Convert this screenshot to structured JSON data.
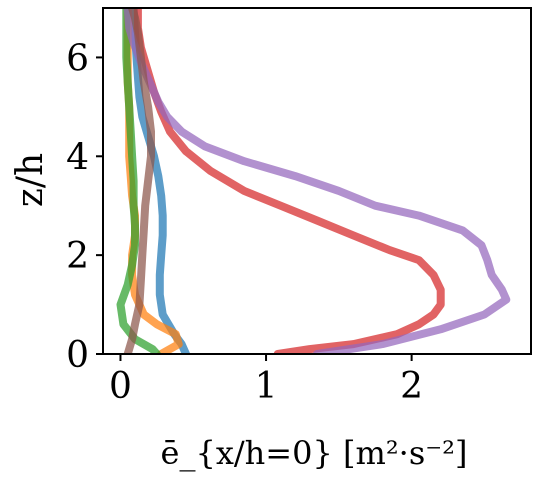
{
  "chart_data": {
    "type": "line",
    "xlabel": "ē_{x/h=0} [m²·s⁻²]",
    "ylabel": "z/h",
    "xlim": [
      -0.12,
      2.82
    ],
    "ylim": [
      0,
      7
    ],
    "xticks": [
      0,
      1,
      2
    ],
    "yticks": [
      0,
      2,
      4,
      6
    ],
    "grid": false,
    "legend": "none",
    "series": [
      {
        "color": "#1f77b4",
        "x": [
          0.45,
          0.42,
          0.37,
          0.29,
          0.27,
          0.27,
          0.28,
          0.29,
          0.29,
          0.28,
          0.26,
          0.23,
          0.19,
          0.15,
          0.13,
          0.12,
          0.11,
          0.1,
          0.09
        ],
        "y": [
          0.0,
          0.2,
          0.4,
          0.8,
          1.2,
          1.6,
          2.0,
          2.4,
          2.8,
          3.2,
          3.6,
          4.0,
          4.4,
          4.8,
          5.2,
          5.6,
          6.0,
          6.5,
          7.0
        ]
      },
      {
        "color": "#ff7f0e",
        "x": [
          0.28,
          0.4,
          0.38,
          0.25,
          0.16,
          0.1,
          0.08,
          0.08,
          0.1,
          0.1,
          0.08,
          0.07,
          0.06,
          0.06,
          0.06,
          0.05,
          0.05,
          0.05,
          0.05
        ],
        "y": [
          0.0,
          0.2,
          0.4,
          0.6,
          0.8,
          1.2,
          1.6,
          2.0,
          2.4,
          2.8,
          3.2,
          3.6,
          4.0,
          4.5,
          5.0,
          5.5,
          6.0,
          6.5,
          7.0
        ]
      },
      {
        "color": "#2ca02c",
        "x": [
          0.25,
          0.22,
          0.1,
          0.02,
          0.0,
          0.05,
          0.08,
          0.1,
          0.1,
          0.09,
          0.09,
          0.08,
          0.07,
          0.06,
          0.05,
          0.04,
          0.04
        ],
        "y": [
          0.0,
          0.1,
          0.3,
          0.6,
          1.0,
          1.4,
          1.8,
          2.2,
          2.6,
          3.0,
          3.5,
          4.0,
          4.5,
          5.0,
          5.5,
          6.0,
          7.0
        ]
      },
      {
        "color": "#d62728",
        "x": [
          1.08,
          1.3,
          1.6,
          1.9,
          2.05,
          2.15,
          2.2,
          2.2,
          2.15,
          2.05,
          1.85,
          1.6,
          1.35,
          1.1,
          0.85,
          0.62,
          0.45,
          0.34,
          0.28,
          0.23,
          0.18,
          0.14,
          0.12,
          0.12
        ],
        "y": [
          0.0,
          0.1,
          0.2,
          0.4,
          0.6,
          0.8,
          1.0,
          1.3,
          1.6,
          1.9,
          2.1,
          2.4,
          2.7,
          3.0,
          3.3,
          3.7,
          4.1,
          4.5,
          4.9,
          5.3,
          5.8,
          6.2,
          6.6,
          7.0
        ]
      },
      {
        "color": "#9467bd",
        "x": [
          1.35,
          1.8,
          2.2,
          2.5,
          2.65,
          2.62,
          2.55,
          2.52,
          2.48,
          2.35,
          2.05,
          1.75,
          1.5,
          1.2,
          0.85,
          0.58,
          0.42,
          0.32,
          0.26,
          0.2,
          0.14,
          0.09,
          0.06,
          0.05
        ],
        "y": [
          0.0,
          0.2,
          0.5,
          0.8,
          1.1,
          1.3,
          1.6,
          1.9,
          2.2,
          2.5,
          2.8,
          3.0,
          3.3,
          3.6,
          3.9,
          4.2,
          4.5,
          4.8,
          5.1,
          5.5,
          5.9,
          6.3,
          6.6,
          7.0
        ]
      },
      {
        "color": "#8c564b",
        "x": [
          0.05,
          0.08,
          0.1,
          0.13,
          0.14,
          0.15,
          0.16,
          0.17,
          0.19,
          0.21,
          0.21,
          0.19,
          0.16,
          0.14,
          0.12,
          0.1,
          0.08
        ],
        "y": [
          0.0,
          0.3,
          0.6,
          1.0,
          1.5,
          2.0,
          2.5,
          3.0,
          3.5,
          4.0,
          4.5,
          5.0,
          5.5,
          6.0,
          6.5,
          6.8,
          7.0
        ]
      }
    ]
  }
}
